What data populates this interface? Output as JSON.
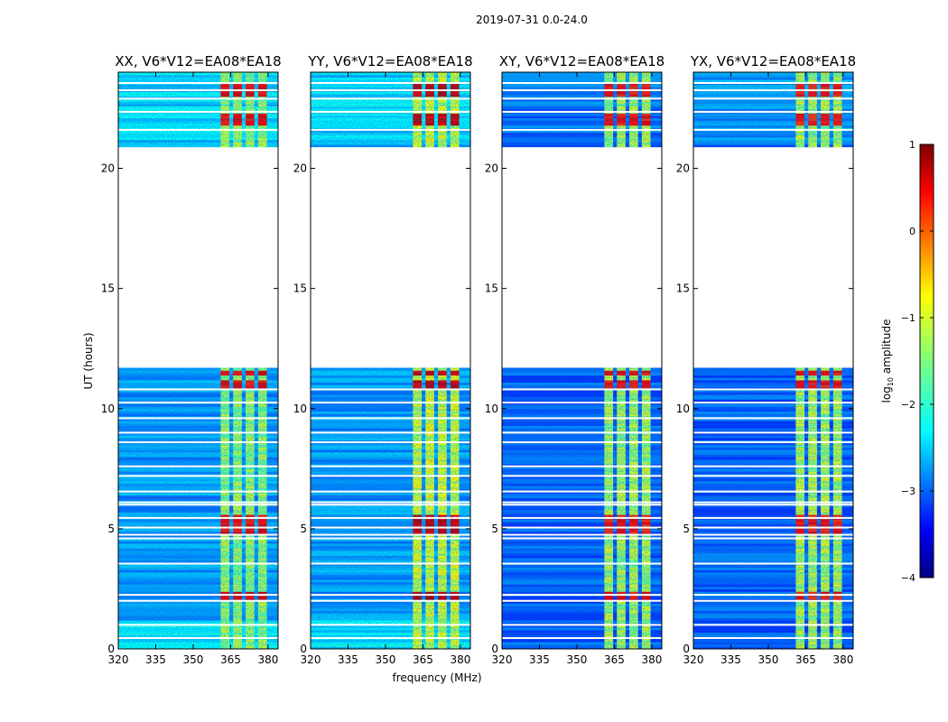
{
  "colors": {
    "jet": [
      "#00007f",
      "#0000ff",
      "#007fff",
      "#00ffff",
      "#7fff7f",
      "#ffff00",
      "#ff7f00",
      "#ff0000",
      "#7f0000"
    ],
    "frame": "#000000",
    "gap": "#ffffff"
  },
  "chart_data": {
    "type": "heatmap",
    "suptitle": "2019-07-31 0.0-24.0",
    "xlabel": "frequency (MHz)",
    "ylabel": "UT (hours)",
    "xlim": [
      320,
      384
    ],
    "ylim": [
      0,
      24
    ],
    "xticks": [
      320,
      335,
      350,
      365,
      380
    ],
    "yticks": [
      0,
      5,
      10,
      15,
      20
    ],
    "no_data_hours": [
      11.7,
      20.9
    ],
    "rfi_band_mhz": [
      361,
      381
    ],
    "rfi_sub_bands_mhz": [
      [
        361,
        364.5
      ],
      [
        366,
        369.5
      ],
      [
        371,
        374.5
      ],
      [
        376,
        379.5
      ]
    ],
    "flagged_rows_hours": [
      0.45,
      1.0,
      2.0,
      2.25,
      3.55,
      4.6,
      4.75,
      5.05,
      5.45,
      6.0,
      6.1,
      6.55,
      7.2,
      7.6,
      8.6,
      9.0,
      9.6,
      10.25,
      10.8,
      21.6,
      22.35,
      22.9,
      23.25,
      23.55
    ],
    "strong_rows_hours": [
      2.1,
      2.3,
      4.9,
      5.1,
      5.3,
      5.5,
      10.9,
      11.1,
      11.5,
      21.9,
      22.1,
      22.2,
      23.1,
      23.3,
      23.5
    ],
    "panels": [
      {
        "title": "XX, V6*V12=EA08*EA18",
        "background_log_amplitude": -2.6,
        "rfi_log_amplitude": -1.4,
        "strong_log_amplitude": 0.4,
        "segments_hours": [
          [
            0.0,
            1.2,
            -2.2
          ],
          [
            21.0,
            24.0,
            -2.3
          ]
        ]
      },
      {
        "title": "YY, V6*V12=EA08*EA18",
        "background_log_amplitude": -2.6,
        "rfi_log_amplitude": -1.1,
        "strong_log_amplitude": 0.6,
        "segments_hours": [
          [
            0.0,
            1.2,
            -2.2
          ],
          [
            21.0,
            24.0,
            -2.3
          ]
        ]
      },
      {
        "title": "XY, V6*V12=EA08*EA18",
        "background_log_amplitude": -2.9,
        "rfi_log_amplitude": -1.3,
        "strong_log_amplitude": 0.3,
        "segments_hours": [
          [
            21.0,
            24.0,
            -2.8
          ]
        ]
      },
      {
        "title": "YX, V6*V12=EA08*EA18",
        "background_log_amplitude": -2.9,
        "rfi_log_amplitude": -1.3,
        "strong_log_amplitude": 0.3,
        "segments_hours": [
          [
            21.0,
            24.0,
            -2.6
          ]
        ]
      }
    ],
    "colorbar": {
      "label_prefix": "log",
      "label_sub": "10",
      "label_suffix": " amplitude",
      "range": [
        -4,
        1
      ],
      "ticks": [
        "1",
        "0",
        "−1",
        "−2",
        "−3",
        "−4"
      ],
      "tick_values": [
        1,
        0,
        -1,
        -2,
        -3,
        -4
      ],
      "colormap": "jet"
    }
  }
}
